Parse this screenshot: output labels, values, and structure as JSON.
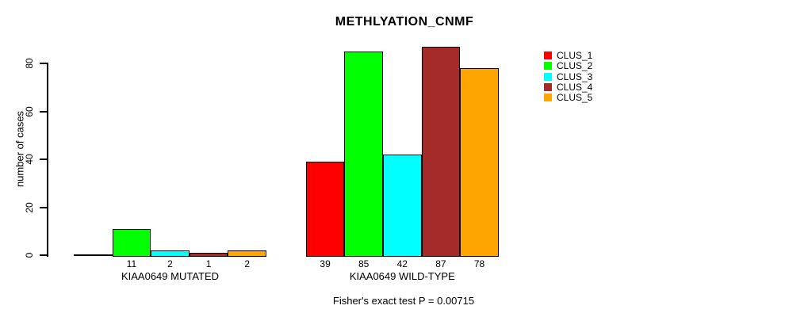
{
  "chart_data": {
    "type": "bar",
    "title": "METHLYATION_CNMF",
    "ylabel": "number of cases",
    "xlabel": "",
    "ylim": [
      0,
      80
    ],
    "yticks": [
      0,
      20,
      40,
      60,
      80
    ],
    "grid": false,
    "legend_position": "right",
    "categories": [
      "KIAA0649 MUTATED",
      "KIAA0649 WILD-TYPE"
    ],
    "series": [
      {
        "name": "CLUS_1",
        "color": "#FF0000",
        "values": [
          0,
          39
        ]
      },
      {
        "name": "CLUS_2",
        "color": "#00FF00",
        "values": [
          11,
          85
        ]
      },
      {
        "name": "CLUS_3",
        "color": "#00FFFF",
        "values": [
          2,
          42
        ]
      },
      {
        "name": "CLUS_4",
        "color": "#A52A2A",
        "values": [
          1,
          87
        ]
      },
      {
        "name": "CLUS_5",
        "color": "#FFA500",
        "values": [
          2,
          78
        ]
      }
    ],
    "bar_value_labels_shown": true,
    "annotation": "Fisher's exact test P = 0.00715"
  }
}
